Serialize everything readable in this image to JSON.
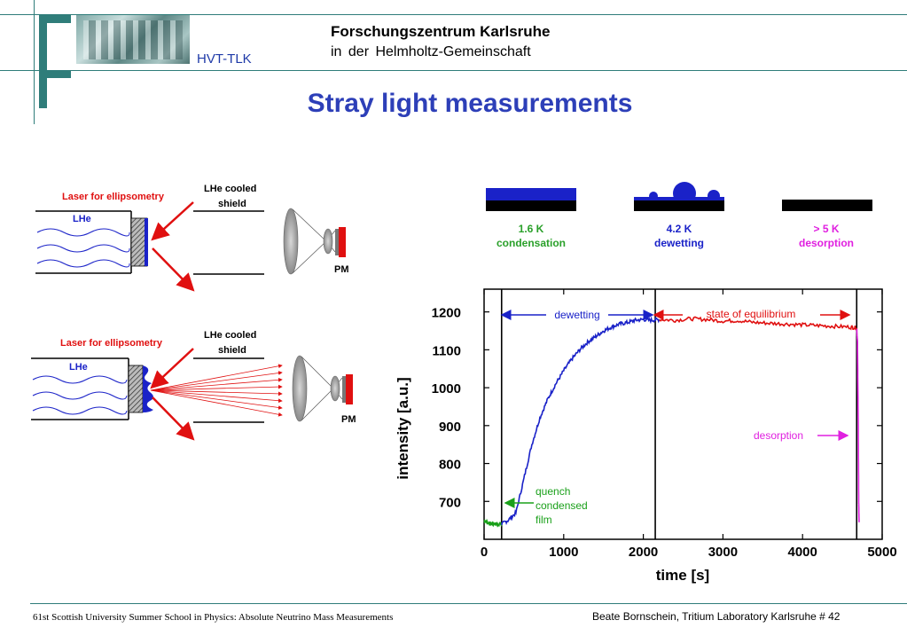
{
  "header": {
    "institution": "Forschungszentrum Karlsruhe",
    "subtitle": "in  der  Helmholtz-Gemeinschaft",
    "department": "HVT-TLK"
  },
  "slide_title": "Stray light measurements",
  "setup_top": {
    "laser_label": "Laser for ellipsometry",
    "shield_label_1": "LHe cooled",
    "shield_label_2": "shield",
    "lhe_label": "LHe",
    "pm_label": "PM"
  },
  "setup_bottom": {
    "laser_label": "Laser for ellipsometry",
    "shield_label_1": "LHe cooled",
    "shield_label_2": "shield",
    "lhe_label": "LHe",
    "pm_label": "PM"
  },
  "film_states": [
    {
      "temp": "1.6 K",
      "state": "condensation",
      "color": "#2aa02a"
    },
    {
      "temp": "4.2 K",
      "state": "dewetting",
      "color": "#1a22c8"
    },
    {
      "temp": "> 5 K",
      "state": "desorption",
      "color": "#e020e0"
    }
  ],
  "chart_data": {
    "type": "line",
    "xlabel": "time [s]",
    "ylabel": "intensity [a.u.]",
    "xlim": [
      0,
      5000
    ],
    "ylim": [
      600,
      1260
    ],
    "xticks": [
      "0",
      "1000",
      "2000",
      "3000",
      "4000",
      "5000"
    ],
    "yticks": [
      "700",
      "800",
      "900",
      "1000",
      "1100",
      "1200"
    ],
    "grid": false,
    "series": [
      {
        "color": "#1aa01a",
        "x": [
          0,
          40,
          80,
          120,
          160,
          200,
          220
        ],
        "y": [
          650,
          645,
          640,
          642,
          639,
          641,
          640
        ]
      },
      {
        "color": "#1a22c8",
        "x": [
          220,
          300,
          400,
          500,
          600,
          700,
          800,
          900,
          1000,
          1100,
          1200,
          1300,
          1400,
          1500,
          1600,
          1700,
          1800,
          1900,
          2000,
          2100,
          2200
        ],
        "y": [
          640,
          650,
          670,
          760,
          850,
          920,
          970,
          1010,
          1045,
          1075,
          1100,
          1120,
          1135,
          1150,
          1160,
          1168,
          1172,
          1178,
          1180,
          1178,
          1180
        ]
      },
      {
        "color": "#e01010",
        "x": [
          2200,
          2400,
          2600,
          2800,
          3000,
          3200,
          3400,
          3600,
          3800,
          4000,
          4200,
          4400,
          4600,
          4680
        ],
        "y": [
          1180,
          1178,
          1182,
          1180,
          1176,
          1177,
          1172,
          1170,
          1168,
          1166,
          1164,
          1162,
          1160,
          1158
        ]
      },
      {
        "color": "#e020e0",
        "x": [
          4680,
          4690,
          4700,
          4705,
          4710
        ],
        "y": [
          1158,
          1120,
          900,
          700,
          645
        ]
      }
    ],
    "markers_x": [
      220,
      2150,
      4680
    ],
    "annotations": [
      {
        "text": "dewetting",
        "color": "#1a22c8"
      },
      {
        "text": "state of equilibrium",
        "color": "#e01010"
      },
      {
        "text": "desorption",
        "color": "#e020e0"
      },
      {
        "text": "quench",
        "color": "#1aa01a"
      },
      {
        "text": "condensed",
        "color": "#1aa01a"
      },
      {
        "text": "film",
        "color": "#1aa01a"
      }
    ]
  },
  "footer": {
    "left": "61st Scottish University Summer School in Physics: Absolute Neutrino Mass Measurements",
    "right": "Beate Bornschein, Tritium Laboratory Karlsruhe   # 42"
  }
}
